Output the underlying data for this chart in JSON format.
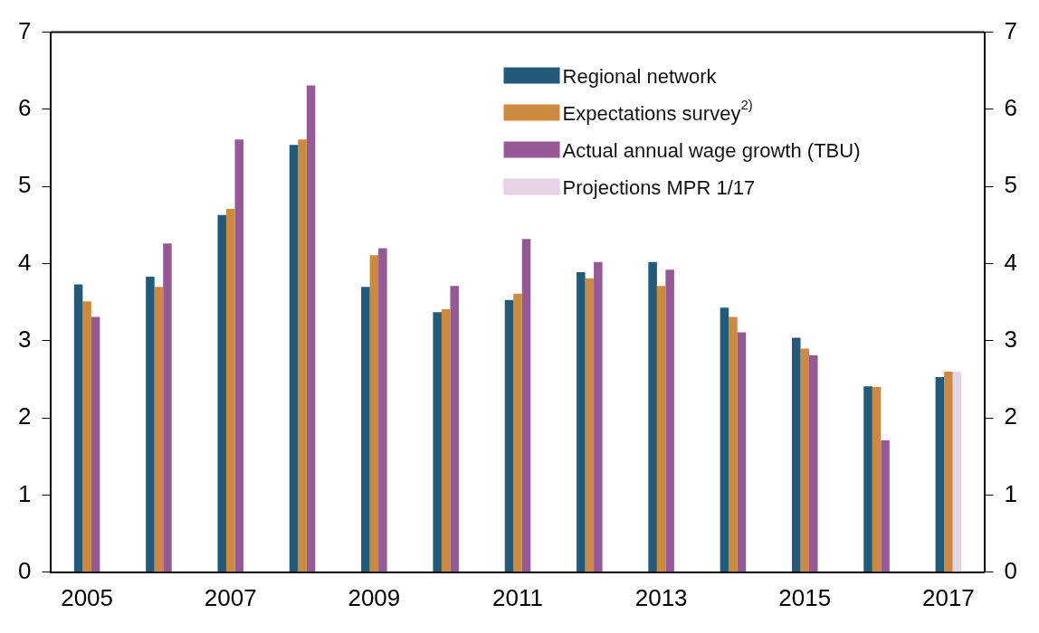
{
  "chart_data": {
    "type": "bar",
    "categories": [
      "2005",
      null,
      "2007",
      null,
      "2009",
      null,
      "2011",
      null,
      "2013",
      null,
      "2015",
      null,
      "2017"
    ],
    "series": [
      {
        "name": "Regional network",
        "color": "#235a7a",
        "values": [
          3.73,
          3.83,
          4.63,
          5.54,
          3.7,
          3.37,
          3.53,
          3.89,
          4.02,
          3.43,
          3.04,
          2.41,
          2.53
        ]
      },
      {
        "name": "Expectations survey$^{2)}$",
        "color": "#cc8a40",
        "values": [
          3.51,
          3.7,
          4.71,
          5.61,
          4.11,
          3.41,
          3.61,
          3.81,
          3.71,
          3.31,
          2.9,
          2.4,
          2.6
        ]
      },
      {
        "name": "Actual annual wage growth (TBU)",
        "color": "#955a96",
        "values": [
          3.31,
          4.26,
          5.61,
          6.31,
          4.2,
          3.71,
          4.32,
          4.02,
          3.92,
          3.11,
          2.81,
          1.71,
          null
        ]
      },
      {
        "name": "Projections MPR 1/17",
        "color": "#e6d3e6",
        "values": [
          null,
          null,
          null,
          null,
          null,
          null,
          null,
          null,
          null,
          null,
          null,
          null,
          2.6
        ]
      }
    ],
    "ylim": [
      0,
      7
    ],
    "yticks": [
      0,
      1,
      2,
      3,
      4,
      5,
      6,
      7
    ],
    "y2lim": [
      0,
      7
    ],
    "y2ticks": [
      0,
      1,
      2,
      3,
      4,
      5,
      6,
      7
    ],
    "grid": false,
    "legend": "top right"
  }
}
